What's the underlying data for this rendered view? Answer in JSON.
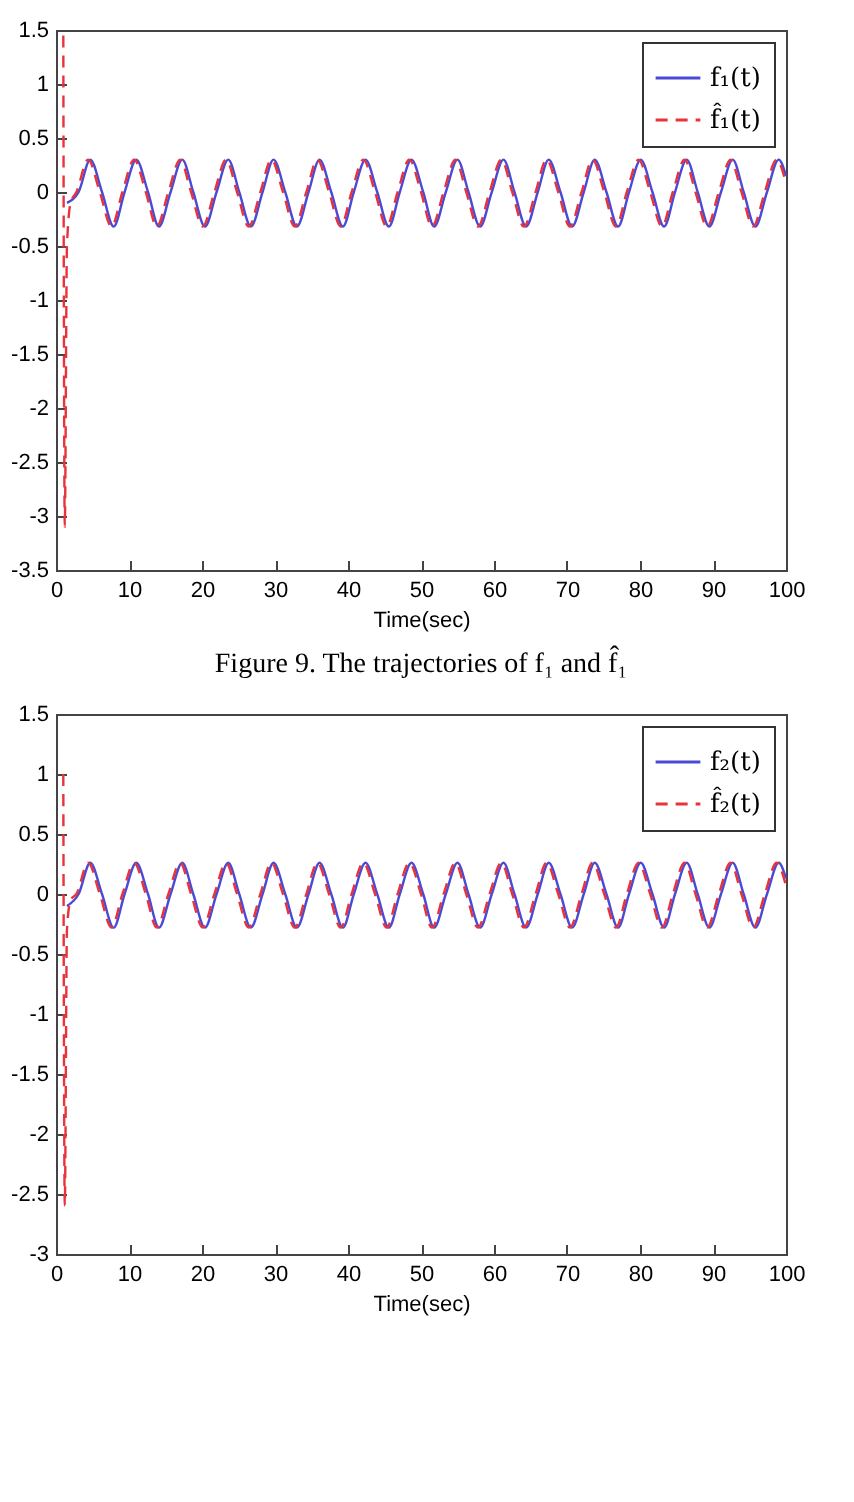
{
  "chart_data": [
    {
      "type": "line",
      "xlabel": "Time(sec)",
      "xlim": [
        0,
        100
      ],
      "xticks": [
        0,
        10,
        20,
        30,
        40,
        50,
        60,
        70,
        80,
        90,
        100
      ],
      "ylim": [
        -3.5,
        1.5
      ],
      "yticks": [
        -3.5,
        -3,
        -2.5,
        -2,
        -1.5,
        -1,
        -0.5,
        0,
        0.5,
        1,
        1.5
      ],
      "grid": false,
      "legend": "top right",
      "annotations": [
        "Figure 9.   The trajectories of f₁ and f̂₁"
      ],
      "series": [
        {
          "name": "f₁(t)",
          "color": "#4a4ad6",
          "line_style": "solid",
          "x": [
            1.5,
            3.1,
            4.7,
            6.3,
            7.9,
            9.4,
            11.0,
            12.6,
            14.1,
            15.7,
            17.3,
            18.8,
            20.4,
            22.0,
            23.6,
            25.1,
            26.7,
            28.3,
            29.8,
            31.4,
            33.0,
            34.6,
            36.1,
            37.7,
            39.3,
            40.8,
            42.4,
            44.0,
            45.6,
            47.1,
            48.7,
            50.3,
            51.8,
            53.4,
            55.0,
            56.5,
            58.1,
            59.7,
            61.3,
            62.8,
            64.4,
            66.0,
            67.5,
            69.1,
            70.7,
            72.3,
            73.8,
            75.4,
            77.0,
            78.5,
            80.1,
            81.7,
            83.3,
            84.8,
            86.4,
            87.9,
            89.5,
            91.1,
            92.7,
            94.2,
            95.8,
            97.4,
            99.0,
            100
          ],
          "values": [
            -0.1,
            0,
            0.3,
            0,
            -0.32,
            0,
            0.3,
            0,
            -0.32,
            0,
            0.3,
            0,
            -0.32,
            0,
            0.3,
            0,
            -0.32,
            0,
            0.3,
            0,
            -0.32,
            0,
            0.3,
            0,
            -0.32,
            0,
            0.3,
            0,
            -0.32,
            0,
            0.3,
            0,
            -0.32,
            0,
            0.3,
            0,
            -0.32,
            0,
            0.3,
            0,
            -0.32,
            0,
            0.3,
            0,
            -0.32,
            0,
            0.3,
            0,
            -0.32,
            0,
            0.3,
            0,
            -0.32,
            0,
            0.3,
            0,
            -0.32,
            0,
            0.3,
            0,
            -0.32,
            0,
            0.3,
            0.15
          ]
        },
        {
          "name": "f̂₁(t)",
          "color": "#e8333a",
          "line_style": "dashed",
          "x": [
            1.0,
            1.2,
            1.5,
            2.0,
            2.8,
            4.4,
            6.0,
            7.6,
            9.1,
            10.7,
            12.3,
            13.8,
            15.4,
            17.0,
            18.5,
            20.1,
            21.7,
            23.3,
            24.8,
            26.4,
            28.0,
            29.5,
            31.1,
            32.7,
            34.3,
            35.8,
            37.4,
            39.0,
            40.5,
            42.1,
            43.7,
            45.3,
            46.8,
            48.4,
            50.0,
            51.5,
            53.1,
            54.7,
            56.2,
            57.8,
            59.4,
            61.0,
            62.5,
            64.1,
            65.7,
            67.2,
            68.8,
            70.4,
            72.0,
            73.5,
            75.1,
            76.7,
            78.2,
            79.8,
            81.4,
            83.0,
            84.5,
            86.1,
            87.6,
            89.2,
            90.8,
            92.4,
            93.9,
            95.5,
            97.1,
            98.7,
            100
          ],
          "values": [
            1.45,
            -3.1,
            -0.5,
            -0.1,
            0,
            0.3,
            0,
            -0.32,
            0,
            0.3,
            0,
            -0.32,
            0,
            0.3,
            0,
            -0.32,
            0,
            0.3,
            0,
            -0.32,
            0,
            0.3,
            0,
            -0.32,
            0,
            0.3,
            0,
            -0.32,
            0,
            0.3,
            0,
            -0.32,
            0,
            0.3,
            0,
            -0.32,
            0,
            0.3,
            0,
            -0.32,
            0,
            0.3,
            0,
            -0.32,
            0,
            0.3,
            0,
            -0.32,
            0,
            0.3,
            0,
            -0.32,
            0,
            0.3,
            0,
            -0.32,
            0,
            0.3,
            0,
            -0.32,
            0,
            0.3,
            0,
            -0.32,
            0,
            0.3,
            0.08
          ]
        }
      ]
    },
    {
      "type": "line",
      "xlabel": "Time(sec)",
      "xlim": [
        0,
        100
      ],
      "xticks": [
        0,
        10,
        20,
        30,
        40,
        50,
        60,
        70,
        80,
        90,
        100
      ],
      "ylim": [
        -3,
        1.5
      ],
      "yticks": [
        -3,
        -2.5,
        -2,
        -1.5,
        -1,
        -0.5,
        0,
        0.5,
        1,
        1.5
      ],
      "grid": false,
      "legend": "top right",
      "series": [
        {
          "name": "f₂(t)",
          "color": "#4a4ad6",
          "line_style": "solid",
          "x": [
            1.5,
            3.1,
            4.7,
            6.3,
            7.9,
            9.4,
            11.0,
            12.6,
            14.1,
            15.7,
            17.3,
            18.8,
            20.4,
            22.0,
            23.6,
            25.1,
            26.7,
            28.3,
            29.8,
            31.4,
            33.0,
            34.6,
            36.1,
            37.7,
            39.3,
            40.8,
            42.4,
            44.0,
            45.6,
            47.1,
            48.7,
            50.3,
            51.8,
            53.4,
            55.0,
            56.5,
            58.1,
            59.7,
            61.3,
            62.8,
            64.4,
            66.0,
            67.5,
            69.1,
            70.7,
            72.3,
            73.8,
            75.4,
            77.0,
            78.5,
            80.1,
            81.7,
            83.3,
            84.8,
            86.4,
            87.9,
            89.5,
            91.1,
            92.7,
            94.2,
            95.8,
            97.4,
            99.0,
            100
          ],
          "values": [
            -0.1,
            0,
            0.26,
            0,
            -0.28,
            0,
            0.26,
            0,
            -0.28,
            0,
            0.26,
            0,
            -0.28,
            0,
            0.26,
            0,
            -0.28,
            0,
            0.26,
            0,
            -0.28,
            0,
            0.26,
            0,
            -0.28,
            0,
            0.26,
            0,
            -0.28,
            0,
            0.26,
            0,
            -0.28,
            0,
            0.26,
            0,
            -0.28,
            0,
            0.26,
            0,
            -0.28,
            0,
            0.26,
            0,
            -0.28,
            0,
            0.26,
            0,
            -0.28,
            0,
            0.26,
            0,
            -0.28,
            0,
            0.26,
            0,
            -0.28,
            0,
            0.26,
            0,
            -0.28,
            0,
            0.26,
            0.13
          ]
        },
        {
          "name": "f̂₂(t)",
          "color": "#e8333a",
          "line_style": "dashed",
          "x": [
            1.0,
            1.2,
            1.5,
            2.0,
            2.8,
            4.4,
            6.0,
            7.6,
            9.1,
            10.7,
            12.3,
            13.8,
            15.4,
            17.0,
            18.5,
            20.1,
            21.7,
            23.3,
            24.8,
            26.4,
            28.0,
            29.5,
            31.1,
            32.7,
            34.3,
            35.8,
            37.4,
            39.0,
            40.5,
            42.1,
            43.7,
            45.3,
            46.8,
            48.4,
            50.0,
            51.5,
            53.1,
            54.7,
            56.2,
            57.8,
            59.4,
            61.0,
            62.5,
            64.1,
            65.7,
            67.2,
            68.8,
            70.4,
            72.0,
            73.5,
            75.1,
            76.7,
            78.2,
            79.8,
            81.4,
            83.0,
            84.5,
            86.1,
            87.6,
            89.2,
            90.8,
            92.4,
            93.9,
            95.5,
            97.1,
            98.7,
            100
          ],
          "values": [
            1.0,
            -2.6,
            -0.3,
            -0.05,
            0,
            0.26,
            0,
            -0.28,
            0,
            0.26,
            0,
            -0.28,
            0,
            0.26,
            0,
            -0.28,
            0,
            0.26,
            0,
            -0.28,
            0,
            0.26,
            0,
            -0.28,
            0,
            0.26,
            0,
            -0.28,
            0,
            0.26,
            0,
            -0.28,
            0,
            0.26,
            0,
            -0.28,
            0,
            0.26,
            0,
            -0.28,
            0,
            0.26,
            0,
            -0.28,
            0,
            0.26,
            0,
            -0.28,
            0,
            0.26,
            0,
            -0.28,
            0,
            0.26,
            0,
            -0.28,
            0,
            0.26,
            0,
            -0.28,
            0,
            0.26,
            0,
            -0.28,
            0,
            0.26,
            0.07
          ]
        }
      ]
    }
  ]
}
